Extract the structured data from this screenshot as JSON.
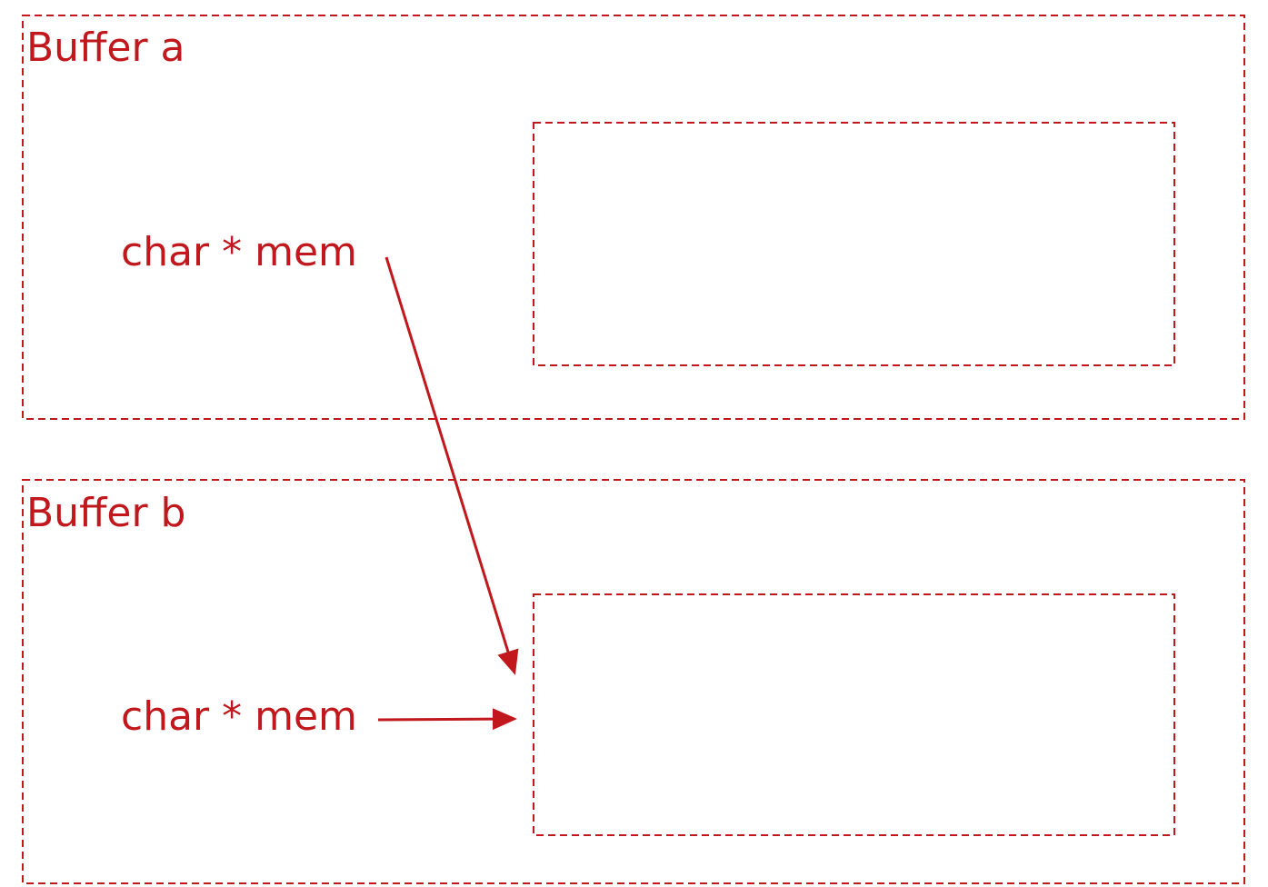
{
  "diagram": {
    "accent_color": "#c0181c",
    "buffer_a": {
      "title": "Buffer a",
      "pointer_label": "char * mem"
    },
    "buffer_b": {
      "title": "Buffer b",
      "pointer_label": "char * mem"
    },
    "arrows": [
      {
        "from": "buffer_a.pointer_label",
        "to": "buffer_b.memory-block"
      },
      {
        "from": "buffer_b.pointer_label",
        "to": "buffer_b.memory-block"
      }
    ]
  }
}
